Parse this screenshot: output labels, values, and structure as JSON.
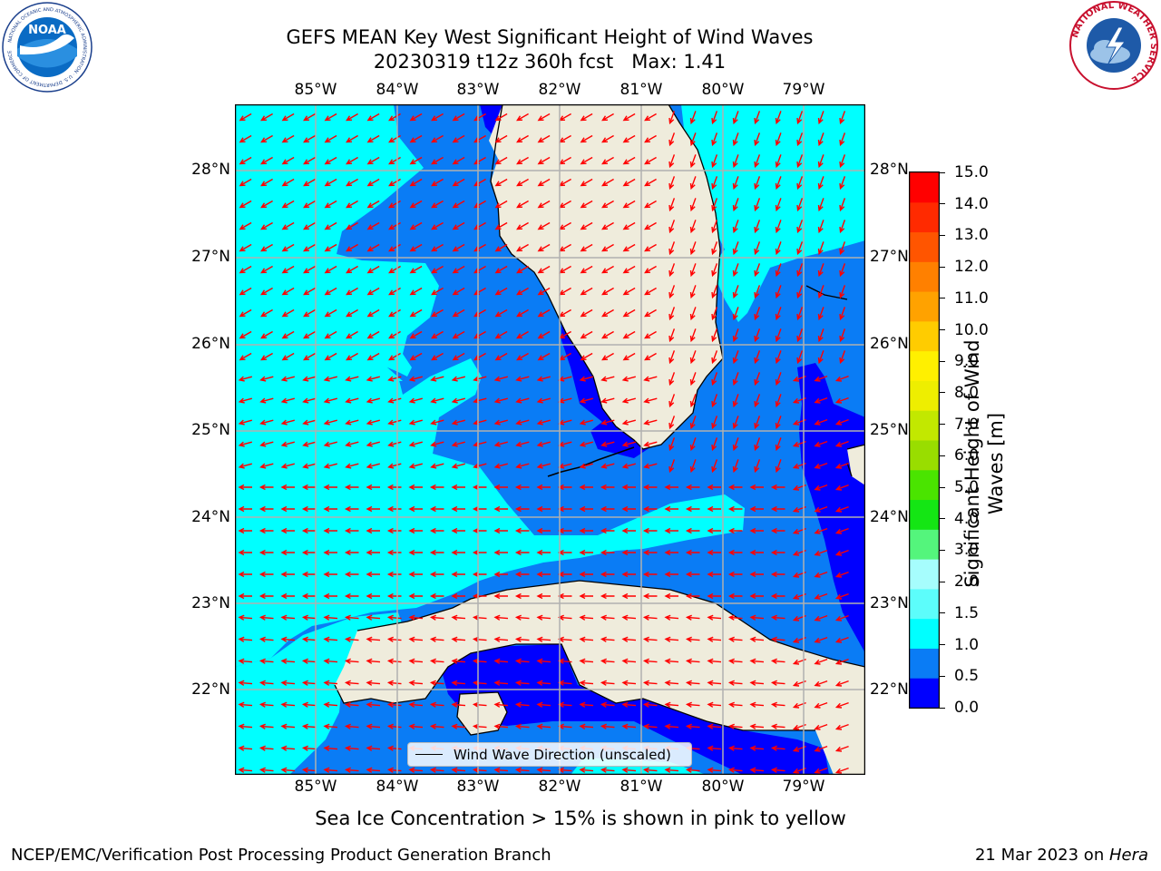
{
  "title": {
    "line1": "GEFS MEAN Key West Significant Height of Wind Waves",
    "line2": "20230319 t12z 360h fcst   Max: 1.41"
  },
  "axes": {
    "lon_ticks": [
      "85°W",
      "84°W",
      "83°W",
      "82°W",
      "81°W",
      "80°W",
      "79°W"
    ],
    "lat_ticks": [
      "28°N",
      "27°N",
      "26°N",
      "25°N",
      "24°N",
      "23°N",
      "22°N"
    ]
  },
  "colorbar": {
    "label": "Significant Height of Wind Waves [m]",
    "ticks": [
      "15.0",
      "14.0",
      "13.0",
      "12.0",
      "11.0",
      "10.0",
      "9.0",
      "8.0",
      "7.0",
      "6.0",
      "5.0",
      "4.0",
      "3.0",
      "2.0",
      "1.5",
      "1.0",
      "0.5",
      "0.0"
    ],
    "bins": [
      {
        "color": "#0000ff"
      },
      {
        "color": "#0a7cf5"
      },
      {
        "color": "#00ffff"
      },
      {
        "color": "#5cfdfb"
      },
      {
        "color": "#a6fdfd"
      },
      {
        "color": "#54f57c"
      },
      {
        "color": "#14e614"
      },
      {
        "color": "#4ae400"
      },
      {
        "color": "#99dd00"
      },
      {
        "color": "#c2e800"
      },
      {
        "color": "#eeee00"
      },
      {
        "color": "#fff000"
      },
      {
        "color": "#ffcc00"
      },
      {
        "color": "#ffa200"
      },
      {
        "color": "#ff8000"
      },
      {
        "color": "#ff5500"
      },
      {
        "color": "#ff2a00"
      },
      {
        "color": "#ff0000"
      }
    ]
  },
  "legend": {
    "label": "Wind Wave Direction (unscaled)"
  },
  "notes": {
    "sea_ice": "Sea Ice Concentration > 15% is shown in pink to yellow"
  },
  "footer": {
    "left": "NCEP/EMC/Verification Post Processing Product Generation Branch",
    "right_prefix": "21 Mar 2023 on ",
    "right_host": "Hera"
  },
  "logos": {
    "noaa": {
      "text": "NOAA",
      "ring": "NATIONAL OCEANIC AND ATMOSPHERIC ADMINISTRATION · U.S. DEPARTMENT OF COMMERCE"
    },
    "nws": {
      "ring": "NATIONAL WEATHER SERVICE"
    }
  },
  "colors": {
    "land": "#efecdc",
    "lowest": "#0000ff",
    "low": "#0a7cf5",
    "mid": "#00ffff",
    "arrow": "#ff0000",
    "grid": "#b0b0b0"
  }
}
